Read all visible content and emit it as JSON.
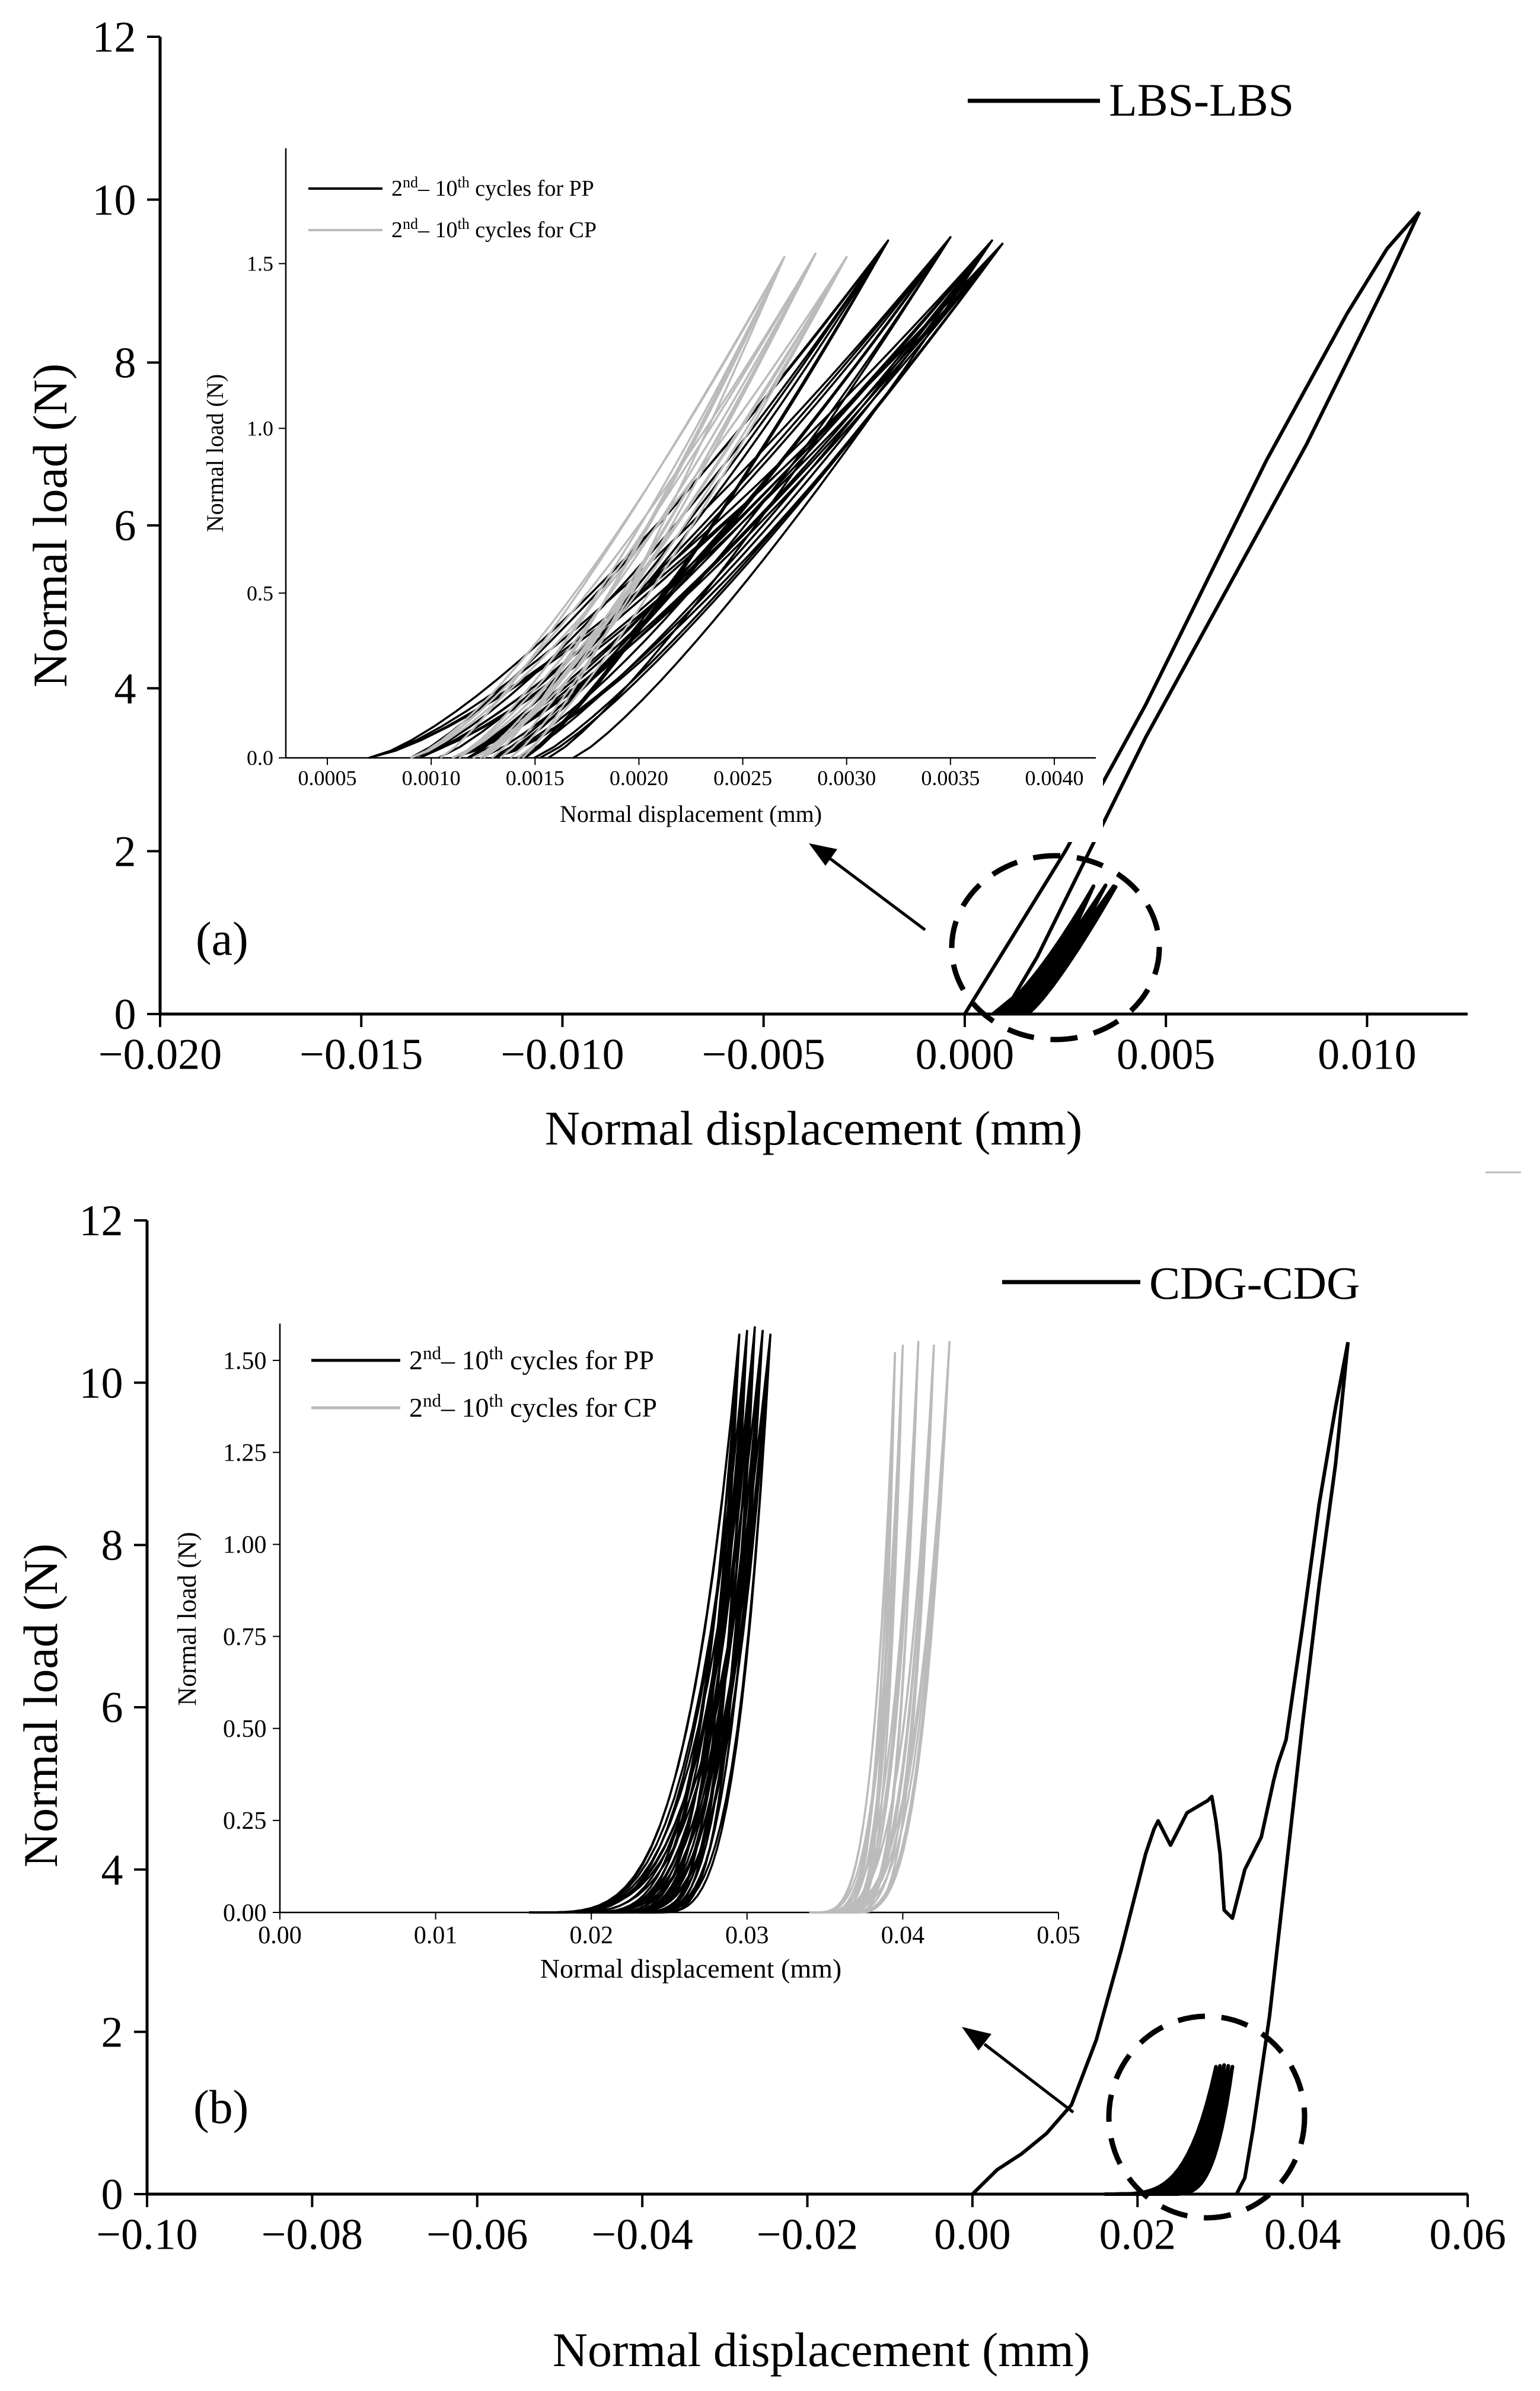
{
  "chart_data": [
    {
      "type": "line",
      "panel_label": "(a)",
      "xlabel": "Normal displacement (mm)",
      "ylabel": "Normal load (N)",
      "xlim": [
        -0.02,
        0.0125
      ],
      "ylim": [
        0,
        12
      ],
      "xticks": [
        -0.02,
        -0.015,
        -0.01,
        -0.005,
        0.0,
        0.005,
        0.01
      ],
      "xtick_labels": [
        "−0.020",
        "−0.015",
        "−0.010",
        "−0.005",
        "0.000",
        "0.005",
        "0.010"
      ],
      "yticks": [
        0,
        2,
        4,
        6,
        8,
        10,
        12
      ],
      "ytick_labels": [
        "0",
        "2",
        "4",
        "6",
        "8",
        "10",
        "12"
      ],
      "legend": [
        {
          "label": "LBS-LBS",
          "color": "#000000"
        }
      ],
      "legend_position": "top-right",
      "series": [
        {
          "name": "LBS-LBS loading",
          "color": "#000000",
          "x": [
            0.0,
            0.0005,
            0.0015,
            0.0025,
            0.0035,
            0.0045,
            0.0055,
            0.0065,
            0.0075,
            0.0085,
            0.0095,
            0.0105,
            0.0113
          ],
          "y": [
            0.0,
            0.4,
            1.2,
            2.0,
            2.9,
            3.8,
            4.8,
            5.8,
            6.8,
            7.7,
            8.6,
            9.4,
            9.85
          ]
        },
        {
          "name": "LBS-LBS unloading",
          "color": "#000000",
          "x": [
            0.0113,
            0.0105,
            0.0095,
            0.0085,
            0.0075,
            0.0065,
            0.0055,
            0.0045,
            0.0035,
            0.0025,
            0.0018,
            0.0012,
            0.0007
          ],
          "y": [
            9.85,
            9.0,
            8.0,
            7.0,
            6.1,
            5.2,
            4.3,
            3.4,
            2.4,
            1.4,
            0.7,
            0.2,
            0.0
          ]
        }
      ],
      "annotations": [
        "dashed ellipse around small cycles near (0.002, 0.8)",
        "arrow pointing to inset"
      ],
      "inset": {
        "type": "line",
        "xlabel": "Normal displacement (mm)",
        "ylabel": "Normal load (N)",
        "xlim": [
          0.0003,
          0.0042
        ],
        "ylim": [
          0,
          1.85
        ],
        "xticks": [
          0.0005,
          0.001,
          0.0015,
          0.002,
          0.0025,
          0.003,
          0.0035,
          0.004
        ],
        "xtick_labels": [
          "0.0005",
          "0.0010",
          "0.0015",
          "0.0020",
          "0.0025",
          "0.0030",
          "0.0035",
          "0.0040"
        ],
        "yticks": [
          0,
          0.5,
          1.0,
          1.5
        ],
        "ytick_labels": [
          "0.0",
          "0.5",
          "1.0",
          "1.5"
        ],
        "legend": [
          {
            "prefix": "2",
            "sup1": "nd",
            "mid": "– 10",
            "sup2": "th",
            "suffix": " cycles for PP",
            "color": "#000000"
          },
          {
            "prefix": "2",
            "sup1": "nd",
            "mid": "– 10",
            "sup2": "th",
            "suffix": " cycles for CP",
            "color": "#bbbbbb"
          }
        ],
        "legend_position": "top-left",
        "series": [
          {
            "name": "PP",
            "color": "#000000",
            "start_x": [
              0.0007,
              0.0009,
              0.0011,
              0.0013
            ],
            "peak_x": [
              0.0032,
              0.0035,
              0.0037,
              0.00375
            ],
            "peak_y": [
              1.57,
              1.58,
              1.57,
              1.56
            ]
          },
          {
            "name": "CP",
            "color": "#bbbbbb",
            "start_x": [
              0.0009,
              0.0011,
              0.0012
            ],
            "peak_x": [
              0.0027,
              0.00285,
              0.003
            ],
            "peak_y": [
              1.52,
              1.53,
              1.52
            ]
          }
        ]
      }
    },
    {
      "type": "line",
      "panel_label": "(b)",
      "xlabel": "Normal displacement (mm)",
      "ylabel": "Normal load (N)",
      "xlim": [
        -0.1,
        0.06
      ],
      "ylim": [
        0,
        12
      ],
      "xticks": [
        -0.1,
        -0.08,
        -0.06,
        -0.04,
        -0.02,
        0.0,
        0.02,
        0.04,
        0.06
      ],
      "xtick_labels": [
        "−0.10",
        "−0.08",
        "−0.06",
        "−0.04",
        "−0.02",
        "0.00",
        "0.02",
        "0.04",
        "0.06"
      ],
      "yticks": [
        0,
        2,
        4,
        6,
        8,
        10,
        12
      ],
      "ytick_labels": [
        "0",
        "2",
        "4",
        "6",
        "8",
        "10",
        "12"
      ],
      "legend": [
        {
          "label": "CDG-CDG",
          "color": "#000000"
        }
      ],
      "legend_position": "top-right",
      "series": [
        {
          "name": "CDG-CDG loading",
          "color": "#000000",
          "x": [
            0.0,
            0.003,
            0.006,
            0.009,
            0.012,
            0.015,
            0.018,
            0.021,
            0.022,
            0.0225,
            0.024,
            0.026,
            0.0285,
            0.029,
            0.0295,
            0.03,
            0.0305,
            0.0315,
            0.033,
            0.035,
            0.0365,
            0.037,
            0.038,
            0.04,
            0.042,
            0.044,
            0.0455
          ],
          "y": [
            0.0,
            0.3,
            0.5,
            0.75,
            1.1,
            1.9,
            3.0,
            4.2,
            4.5,
            4.6,
            4.3,
            4.7,
            4.85,
            4.9,
            4.6,
            4.2,
            3.5,
            3.4,
            4.0,
            4.4,
            5.1,
            5.3,
            5.6,
            7.0,
            8.5,
            9.7,
            10.5
          ]
        },
        {
          "name": "CDG-CDG unloading",
          "color": "#000000",
          "x": [
            0.0455,
            0.044,
            0.042,
            0.04,
            0.038,
            0.036,
            0.034,
            0.033,
            0.032
          ],
          "y": [
            10.5,
            9.0,
            7.5,
            5.8,
            4.0,
            2.2,
            0.8,
            0.2,
            0.0
          ]
        }
      ],
      "annotations": [
        "dashed ellipse around small cycles near (0.03, 0.8)",
        "arrow pointing to inset"
      ],
      "inset": {
        "type": "line",
        "xlabel": "Normal displacement (mm)",
        "ylabel": "Normal load (N)",
        "xlim": [
          0.0,
          0.05
        ],
        "ylim": [
          0,
          1.6
        ],
        "xticks": [
          0.0,
          0.01,
          0.02,
          0.03,
          0.04,
          0.05
        ],
        "xtick_labels": [
          "0.00",
          "0.01",
          "0.02",
          "0.03",
          "0.04",
          "0.05"
        ],
        "yticks": [
          0,
          0.25,
          0.5,
          0.75,
          1.0,
          1.25,
          1.5
        ],
        "ytick_labels": [
          "0.00",
          "0.25",
          "0.50",
          "0.75",
          "1.00",
          "1.25",
          "1.50"
        ],
        "legend": [
          {
            "prefix": "2",
            "sup1": "nd",
            "mid": "– 10",
            "sup2": "th",
            "suffix": " cycles for PP",
            "color": "#000000"
          },
          {
            "prefix": "2",
            "sup1": "nd",
            "mid": "– 10",
            "sup2": "th",
            "suffix": " cycles for CP",
            "color": "#bbbbbb"
          }
        ],
        "legend_position": "top-left",
        "series": [
          {
            "name": "PP",
            "color": "#000000",
            "start_x": [
              0.016,
              0.019,
              0.021,
              0.023
            ],
            "peak_x": [
              0.0295,
              0.03,
              0.0305,
              0.031,
              0.0315
            ],
            "peak_y": [
              1.57,
              1.58,
              1.59,
              1.58,
              1.57
            ]
          },
          {
            "name": "CP",
            "color": "#bbbbbb",
            "start_x": [
              0.034,
              0.035,
              0.036
            ],
            "peak_x": [
              0.0395,
              0.04,
              0.041,
              0.042,
              0.043
            ],
            "peak_y": [
              1.52,
              1.54,
              1.55,
              1.54,
              1.55
            ]
          }
        ]
      }
    }
  ]
}
